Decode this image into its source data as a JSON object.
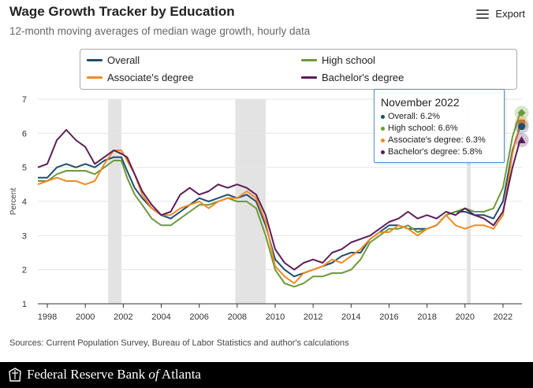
{
  "header": {
    "title": "Wage Growth Tracker by Education",
    "subtitle": "12-month moving averages of median wage growth, hourly data",
    "export_label": "Export"
  },
  "legend": {
    "items": [
      {
        "label": "Overall",
        "color": "#1f4e6e"
      },
      {
        "label": "High school",
        "color": "#6c9a3a"
      },
      {
        "label": "Associate's degree",
        "color": "#f08a24"
      },
      {
        "label": "Bachelor's degree",
        "color": "#5b1d5a"
      }
    ]
  },
  "tooltip": {
    "title": "November 2022",
    "rows": [
      {
        "text": "Overall: 6.2%",
        "color": "#1f4e6e"
      },
      {
        "text": "High school: 6.6%",
        "color": "#6c9a3a"
      },
      {
        "text": "Associate's degree: 6.3%",
        "color": "#f08a24"
      },
      {
        "text": "Bachelor's degree: 5.8%",
        "color": "#5b1d5a"
      }
    ]
  },
  "sources": "Sources: Current Population Survey, Bureau of Labor Statistics and author's calculations",
  "footer": {
    "org_pre": "Federal Reserve Bank ",
    "org_of": "of",
    "org_post": " Atlanta"
  },
  "chart_data": {
    "type": "line",
    "ylabel": "Percent",
    "ylim": [
      1,
      7
    ],
    "xlim": [
      1997.5,
      2023
    ],
    "yticks": [
      1,
      2,
      3,
      4,
      5,
      6,
      7
    ],
    "xticks": [
      1998,
      2000,
      2002,
      2004,
      2006,
      2008,
      2010,
      2012,
      2014,
      2016,
      2018,
      2020,
      2022
    ],
    "grid": "horizontal",
    "recessions": [
      [
        2001.2,
        2001.9
      ],
      [
        2007.9,
        2009.5
      ],
      [
        2020.1,
        2020.3
      ]
    ],
    "series": [
      {
        "name": "Overall",
        "color": "#1f4e6e",
        "points": [
          [
            1997.5,
            4.7
          ],
          [
            1998,
            4.7
          ],
          [
            1998.5,
            5.0
          ],
          [
            1999,
            5.1
          ],
          [
            1999.5,
            5.0
          ],
          [
            2000,
            5.1
          ],
          [
            2000.5,
            5.0
          ],
          [
            2001,
            5.2
          ],
          [
            2001.5,
            5.3
          ],
          [
            2001.9,
            5.3
          ],
          [
            2002.2,
            4.9
          ],
          [
            2002.6,
            4.4
          ],
          [
            2003,
            4.1
          ],
          [
            2003.5,
            3.8
          ],
          [
            2004,
            3.6
          ],
          [
            2004.5,
            3.5
          ],
          [
            2005,
            3.7
          ],
          [
            2005.5,
            3.9
          ],
          [
            2006,
            4.1
          ],
          [
            2006.5,
            4.0
          ],
          [
            2007,
            4.1
          ],
          [
            2007.5,
            4.2
          ],
          [
            2008,
            4.1
          ],
          [
            2008.5,
            4.2
          ],
          [
            2009,
            4.0
          ],
          [
            2009.5,
            3.3
          ],
          [
            2010,
            2.3
          ],
          [
            2010.5,
            2.0
          ],
          [
            2011,
            1.8
          ],
          [
            2011.5,
            1.9
          ],
          [
            2012,
            2.0
          ],
          [
            2012.5,
            2.1
          ],
          [
            2013,
            2.2
          ],
          [
            2013.5,
            2.4
          ],
          [
            2014,
            2.5
          ],
          [
            2014.5,
            2.5
          ],
          [
            2015,
            2.9
          ],
          [
            2015.5,
            3.1
          ],
          [
            2016,
            3.3
          ],
          [
            2016.5,
            3.3
          ],
          [
            2017,
            3.2
          ],
          [
            2017.5,
            3.2
          ],
          [
            2018,
            3.2
          ],
          [
            2018.5,
            3.3
          ],
          [
            2019,
            3.6
          ],
          [
            2019.5,
            3.7
          ],
          [
            2020,
            3.7
          ],
          [
            2020.5,
            3.6
          ],
          [
            2021,
            3.6
          ],
          [
            2021.5,
            3.5
          ],
          [
            2022,
            4.0
          ],
          [
            2022.5,
            5.5
          ],
          [
            2022.9,
            6.2
          ]
        ]
      },
      {
        "name": "High school",
        "color": "#6c9a3a",
        "points": [
          [
            1997.5,
            4.6
          ],
          [
            1998,
            4.6
          ],
          [
            1998.5,
            4.8
          ],
          [
            1999,
            4.9
          ],
          [
            1999.5,
            4.9
          ],
          [
            2000,
            4.9
          ],
          [
            2000.5,
            4.8
          ],
          [
            2001,
            5.0
          ],
          [
            2001.5,
            5.2
          ],
          [
            2001.9,
            5.2
          ],
          [
            2002.2,
            4.7
          ],
          [
            2002.6,
            4.2
          ],
          [
            2003,
            3.9
          ],
          [
            2003.5,
            3.5
          ],
          [
            2004,
            3.3
          ],
          [
            2004.5,
            3.3
          ],
          [
            2005,
            3.5
          ],
          [
            2005.5,
            3.7
          ],
          [
            2006,
            3.9
          ],
          [
            2006.5,
            3.9
          ],
          [
            2007,
            4.0
          ],
          [
            2007.5,
            4.1
          ],
          [
            2008,
            4.0
          ],
          [
            2008.5,
            4.0
          ],
          [
            2009,
            3.8
          ],
          [
            2009.5,
            3.0
          ],
          [
            2010,
            2.0
          ],
          [
            2010.5,
            1.6
          ],
          [
            2011,
            1.5
          ],
          [
            2011.5,
            1.6
          ],
          [
            2012,
            1.8
          ],
          [
            2012.5,
            1.8
          ],
          [
            2013,
            1.9
          ],
          [
            2013.5,
            1.9
          ],
          [
            2014,
            2.0
          ],
          [
            2014.5,
            2.3
          ],
          [
            2015,
            2.8
          ],
          [
            2015.5,
            3.0
          ],
          [
            2016,
            3.2
          ],
          [
            2016.5,
            3.2
          ],
          [
            2017,
            3.3
          ],
          [
            2017.5,
            3.1
          ],
          [
            2018,
            3.2
          ],
          [
            2018.5,
            3.3
          ],
          [
            2019,
            3.6
          ],
          [
            2019.5,
            3.7
          ],
          [
            2020,
            3.8
          ],
          [
            2020.5,
            3.7
          ],
          [
            2021,
            3.7
          ],
          [
            2021.5,
            3.8
          ],
          [
            2022,
            4.4
          ],
          [
            2022.5,
            5.9
          ],
          [
            2022.9,
            6.6
          ]
        ]
      },
      {
        "name": "Associate's degree",
        "color": "#f08a24",
        "points": [
          [
            1997.5,
            4.5
          ],
          [
            1998,
            4.6
          ],
          [
            1998.5,
            4.7
          ],
          [
            1999,
            4.6
          ],
          [
            1999.5,
            4.6
          ],
          [
            2000,
            4.5
          ],
          [
            2000.5,
            4.6
          ],
          [
            2001,
            5.1
          ],
          [
            2001.5,
            5.5
          ],
          [
            2001.9,
            5.5
          ],
          [
            2002.2,
            5.2
          ],
          [
            2002.6,
            4.8
          ],
          [
            2003,
            4.2
          ],
          [
            2003.5,
            3.8
          ],
          [
            2004,
            3.6
          ],
          [
            2004.5,
            3.6
          ],
          [
            2005,
            3.8
          ],
          [
            2005.5,
            3.9
          ],
          [
            2006,
            4.0
          ],
          [
            2006.5,
            3.8
          ],
          [
            2007,
            4.0
          ],
          [
            2007.5,
            4.1
          ],
          [
            2008,
            4.1
          ],
          [
            2008.5,
            4.3
          ],
          [
            2009,
            4.1
          ],
          [
            2009.5,
            3.4
          ],
          [
            2010,
            2.1
          ],
          [
            2010.5,
            1.8
          ],
          [
            2011,
            1.6
          ],
          [
            2011.5,
            1.9
          ],
          [
            2012,
            2.0
          ],
          [
            2012.5,
            2.1
          ],
          [
            2013,
            2.3
          ],
          [
            2013.5,
            2.2
          ],
          [
            2014,
            2.4
          ],
          [
            2014.5,
            2.6
          ],
          [
            2015,
            2.9
          ],
          [
            2015.5,
            3.1
          ],
          [
            2016,
            3.1
          ],
          [
            2016.5,
            3.3
          ],
          [
            2017,
            3.2
          ],
          [
            2017.5,
            3.0
          ],
          [
            2018,
            3.2
          ],
          [
            2018.5,
            3.3
          ],
          [
            2019,
            3.6
          ],
          [
            2019.5,
            3.3
          ],
          [
            2020,
            3.2
          ],
          [
            2020.5,
            3.3
          ],
          [
            2021,
            3.3
          ],
          [
            2021.5,
            3.2
          ],
          [
            2022,
            3.6
          ],
          [
            2022.5,
            5.4
          ],
          [
            2022.9,
            6.3
          ]
        ]
      },
      {
        "name": "Bachelor's degree",
        "color": "#5b1d5a",
        "points": [
          [
            1997.5,
            5.0
          ],
          [
            1998,
            5.1
          ],
          [
            1998.5,
            5.8
          ],
          [
            1999,
            6.1
          ],
          [
            1999.5,
            5.8
          ],
          [
            2000,
            5.6
          ],
          [
            2000.5,
            5.1
          ],
          [
            2001,
            5.3
          ],
          [
            2001.5,
            5.5
          ],
          [
            2001.9,
            5.4
          ],
          [
            2002.2,
            5.3
          ],
          [
            2002.6,
            4.8
          ],
          [
            2003,
            4.3
          ],
          [
            2003.5,
            3.9
          ],
          [
            2004,
            3.6
          ],
          [
            2004.5,
            3.7
          ],
          [
            2005,
            4.2
          ],
          [
            2005.5,
            4.4
          ],
          [
            2006,
            4.2
          ],
          [
            2006.5,
            4.3
          ],
          [
            2007,
            4.5
          ],
          [
            2007.5,
            4.4
          ],
          [
            2008,
            4.5
          ],
          [
            2008.5,
            4.4
          ],
          [
            2009,
            4.2
          ],
          [
            2009.5,
            3.6
          ],
          [
            2010,
            2.6
          ],
          [
            2010.5,
            2.2
          ],
          [
            2011,
            2.0
          ],
          [
            2011.5,
            2.2
          ],
          [
            2012,
            2.3
          ],
          [
            2012.5,
            2.2
          ],
          [
            2013,
            2.5
          ],
          [
            2013.5,
            2.6
          ],
          [
            2014,
            2.8
          ],
          [
            2014.5,
            2.9
          ],
          [
            2015,
            3.0
          ],
          [
            2015.5,
            3.2
          ],
          [
            2016,
            3.4
          ],
          [
            2016.5,
            3.5
          ],
          [
            2017,
            3.7
          ],
          [
            2017.5,
            3.5
          ],
          [
            2018,
            3.6
          ],
          [
            2018.5,
            3.5
          ],
          [
            2019,
            3.7
          ],
          [
            2019.5,
            3.6
          ],
          [
            2020,
            3.8
          ],
          [
            2020.5,
            3.6
          ],
          [
            2021,
            3.5
          ],
          [
            2021.5,
            3.3
          ],
          [
            2022,
            3.7
          ],
          [
            2022.5,
            5.0
          ],
          [
            2022.9,
            5.8
          ]
        ]
      }
    ],
    "markers": [
      {
        "series": "High school",
        "shape": "diamond",
        "value": 6.6
      },
      {
        "series": "Associate's degree",
        "shape": "square",
        "value": 6.3
      },
      {
        "series": "Overall",
        "shape": "circle",
        "value": 6.2
      },
      {
        "series": "Bachelor's degree",
        "shape": "triangle",
        "value": 5.8
      }
    ]
  }
}
